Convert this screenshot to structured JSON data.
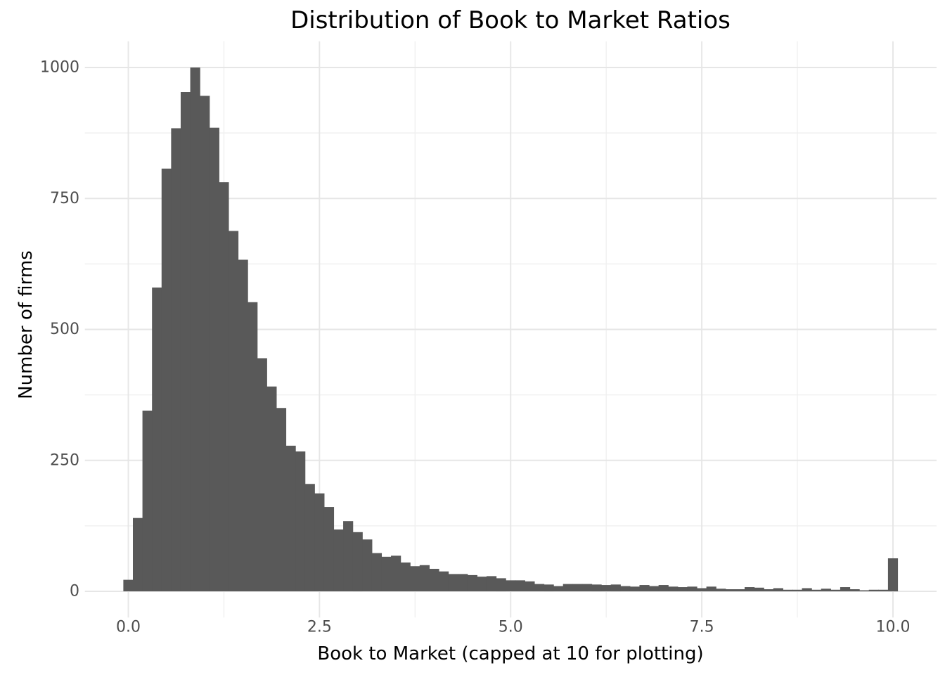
{
  "chart_data": {
    "type": "bar",
    "subtype": "histogram",
    "title": "Distribution of Book to Market Ratios",
    "xlabel": "Book to Market (capped at 10 for plotting)",
    "ylabel": "Number of firms",
    "x_ticks": [
      "0.0",
      "2.5",
      "5.0",
      "7.5",
      "10.0"
    ],
    "x_tick_values": [
      0,
      2.5,
      5,
      7.5,
      10
    ],
    "y_ticks": [
      "0",
      "250",
      "500",
      "750",
      "1000"
    ],
    "y_tick_values": [
      0,
      250,
      500,
      750,
      1000
    ],
    "x_minor_gridlines": [
      1.25,
      3.75,
      6.25,
      8.75
    ],
    "y_minor_gridlines": [
      125,
      375,
      625,
      875
    ],
    "xlim": [
      -0.57,
      10.57
    ],
    "ylim": [
      -50,
      1050
    ],
    "grid": "on",
    "legend": "none",
    "bin_width": 0.125,
    "bin_centers": [
      0,
      0.125,
      0.25,
      0.375,
      0.5,
      0.625,
      0.75,
      0.875,
      1,
      1.125,
      1.25,
      1.375,
      1.5,
      1.625,
      1.75,
      1.875,
      2,
      2.125,
      2.25,
      2.375,
      2.5,
      2.625,
      2.75,
      2.875,
      3,
      3.125,
      3.25,
      3.375,
      3.5,
      3.625,
      3.75,
      3.875,
      4,
      4.125,
      4.25,
      4.375,
      4.5,
      4.625,
      4.75,
      4.875,
      5,
      5.125,
      5.25,
      5.375,
      5.5,
      5.625,
      5.75,
      5.875,
      6,
      6.125,
      6.25,
      6.375,
      6.5,
      6.625,
      6.75,
      6.875,
      7,
      7.125,
      7.25,
      7.375,
      7.5,
      7.625,
      7.75,
      7.875,
      8,
      8.125,
      8.25,
      8.375,
      8.5,
      8.625,
      8.75,
      8.875,
      9,
      9.125,
      9.25,
      9.375,
      9.5,
      9.625,
      9.75,
      9.875,
      10
    ],
    "counts": [
      22,
      140,
      345,
      580,
      807,
      884,
      953,
      1000,
      946,
      885,
      781,
      688,
      633,
      552,
      445,
      391,
      350,
      278,
      267,
      205,
      187,
      161,
      118,
      134,
      113,
      99,
      73,
      66,
      68,
      55,
      48,
      50,
      43,
      38,
      33,
      33,
      31,
      28,
      29,
      25,
      21,
      21,
      19,
      14,
      13,
      10,
      14,
      14,
      14,
      13,
      12,
      13,
      10,
      9,
      12,
      10,
      12,
      9,
      8,
      9,
      6,
      9,
      5,
      4,
      4,
      8,
      7,
      4,
      6,
      3,
      3,
      6,
      3,
      5,
      3,
      8,
      4,
      2,
      3,
      3,
      63
    ],
    "colors": {
      "bar_fill": "#595959",
      "grid_major": "#e6e6e6",
      "grid_minor": "#f0f0f0",
      "tick_label": "#4d4d4d",
      "title_text": "#000000",
      "background": "#ffffff"
    }
  }
}
